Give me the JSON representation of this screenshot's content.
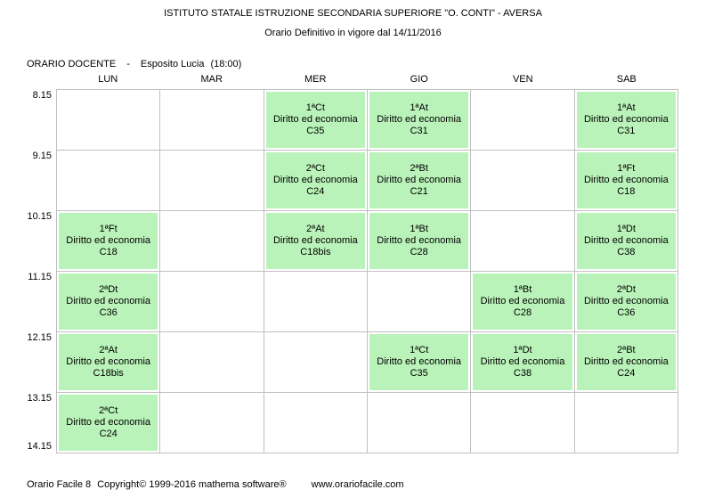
{
  "header": {
    "title": "ISTITUTO STATALE ISTRUZIONE SECONDARIA SUPERIORE \"O. CONTI\" - AVERSA",
    "subtitle": "Orario Definitivo in vigore dal 14/11/2016"
  },
  "teacher_line": {
    "label": "ORARIO DOCENTE",
    "separator": "-",
    "name": "Esposito Lucia",
    "hours": "(18:00)"
  },
  "days": [
    "LUN",
    "MAR",
    "MER",
    "GIO",
    "VEN",
    "SAB"
  ],
  "times": [
    "8.15",
    "9.15",
    "10.15",
    "11.15",
    "12.15",
    "13.15",
    "14.15"
  ],
  "colors": {
    "lesson_bg": "#b9f3b9",
    "grid_border": "#c0c0c0"
  },
  "grid": [
    [
      null,
      null,
      {
        "class": "1ªCt",
        "subject": "Diritto ed economia",
        "room": "C35"
      },
      {
        "class": "1ªAt",
        "subject": "Diritto ed economia",
        "room": "C31"
      },
      null,
      {
        "class": "1ªAt",
        "subject": "Diritto ed economia",
        "room": "C31"
      }
    ],
    [
      null,
      null,
      {
        "class": "2ªCt",
        "subject": "Diritto ed economia",
        "room": "C24"
      },
      {
        "class": "2ªBt",
        "subject": "Diritto ed economia",
        "room": "C21"
      },
      null,
      {
        "class": "1ªFt",
        "subject": "Diritto ed economia",
        "room": "C18"
      }
    ],
    [
      {
        "class": "1ªFt",
        "subject": "Diritto ed economia",
        "room": "C18"
      },
      null,
      {
        "class": "2ªAt",
        "subject": "Diritto ed economia",
        "room": "C18bis"
      },
      {
        "class": "1ªBt",
        "subject": "Diritto ed economia",
        "room": "C28"
      },
      null,
      {
        "class": "1ªDt",
        "subject": "Diritto ed economia",
        "room": "C38"
      }
    ],
    [
      {
        "class": "2ªDt",
        "subject": "Diritto ed economia",
        "room": "C36"
      },
      null,
      null,
      null,
      {
        "class": "1ªBt",
        "subject": "Diritto ed economia",
        "room": "C28"
      },
      {
        "class": "2ªDt",
        "subject": "Diritto ed economia",
        "room": "C36"
      }
    ],
    [
      {
        "class": "2ªAt",
        "subject": "Diritto ed economia",
        "room": "C18bis"
      },
      null,
      null,
      {
        "class": "1ªCt",
        "subject": "Diritto ed economia",
        "room": "C35"
      },
      {
        "class": "1ªDt",
        "subject": "Diritto ed economia",
        "room": "C38"
      },
      {
        "class": "2ªBt",
        "subject": "Diritto ed economia",
        "room": "C24"
      }
    ],
    [
      {
        "class": "2ªCt",
        "subject": "Diritto ed economia",
        "room": "C24"
      },
      null,
      null,
      null,
      null,
      null
    ]
  ],
  "footer": {
    "app": "Orario Facile 8",
    "copyright": "Copyright© 1999-2016 mathema software®",
    "url": "www.orariofacile.com"
  }
}
